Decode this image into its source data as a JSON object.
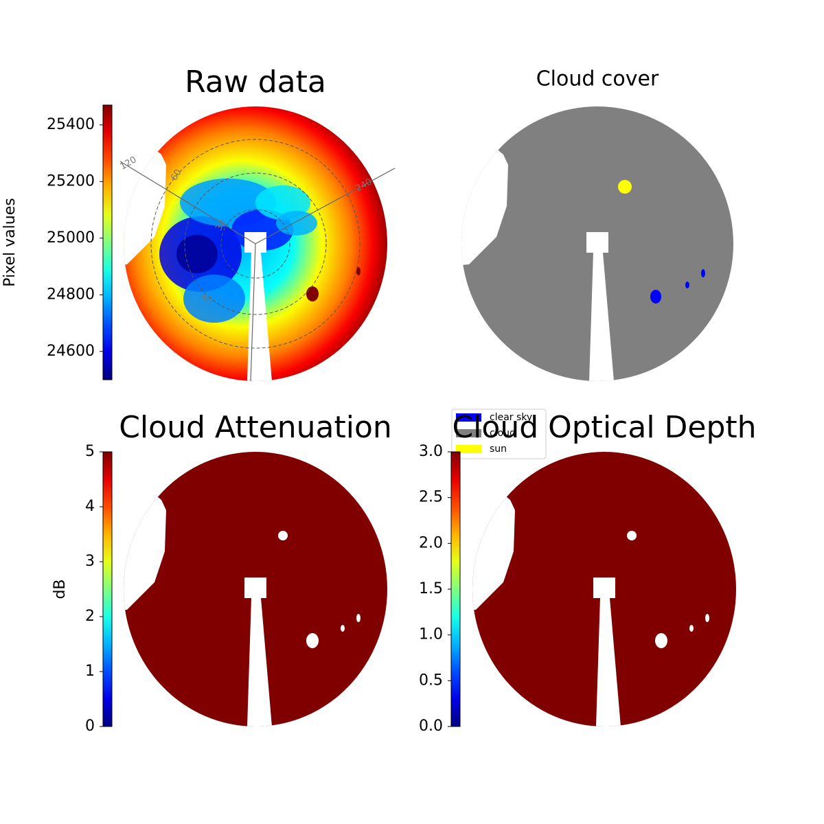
{
  "chart_data": [
    {
      "type": "image",
      "title": "Raw data",
      "colormap": "jet",
      "colorbar": {
        "label": "Pixel values",
        "lim": [
          24500,
          25470
        ],
        "ticks": [
          24600,
          24800,
          25000,
          25200,
          25400
        ]
      },
      "annotations": [
        "120",
        "60",
        "30",
        "40",
        "240"
      ]
    },
    {
      "type": "image",
      "title": "Cloud cover",
      "legend": {
        "labels": [
          "clear sky",
          "cloud",
          "sun"
        ],
        "colors": [
          "#0000ff",
          "#808080",
          "#ffff00"
        ]
      }
    },
    {
      "type": "image",
      "title": "Cloud Attenuation",
      "colormap": "jet",
      "colorbar": {
        "label": "dB",
        "lim": [
          0,
          5
        ],
        "ticks": [
          0,
          1,
          2,
          3,
          4,
          5
        ]
      }
    },
    {
      "type": "image",
      "title": "Cloud Optical Depth",
      "colormap": "jet",
      "colorbar": {
        "lim": [
          0,
          3
        ],
        "ticks": [
          {
            "value": 0,
            "label": "0.0"
          },
          {
            "value": 0.5,
            "label": "0.5"
          },
          {
            "value": 1,
            "label": "1.0"
          },
          {
            "value": 1.5,
            "label": "1.5"
          },
          {
            "value": 2,
            "label": "2.0"
          },
          {
            "value": 2.5,
            "label": "2.5"
          },
          {
            "value": 3,
            "label": "3.0"
          }
        ]
      }
    }
  ]
}
